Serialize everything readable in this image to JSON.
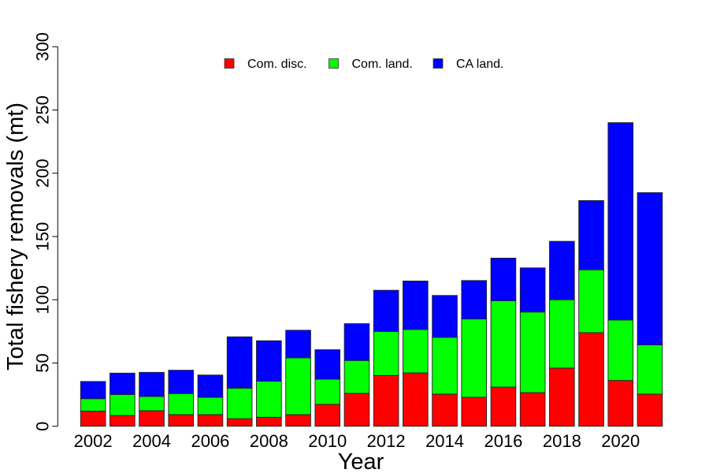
{
  "chart_data": {
    "type": "bar",
    "stacked": true,
    "title": "",
    "xlabel": "Year",
    "ylabel": "Total fishery removals (mt)",
    "ylim": [
      0,
      300
    ],
    "yticks": [
      0,
      50,
      100,
      150,
      200,
      250,
      300
    ],
    "grid": false,
    "legend_position": "top-center",
    "categories": [
      "2002",
      "2003",
      "2004",
      "2005",
      "2006",
      "2007",
      "2008",
      "2009",
      "2010",
      "2011",
      "2012",
      "2013",
      "2014",
      "2015",
      "2016",
      "2017",
      "2018",
      "2019",
      "2020",
      "2021"
    ],
    "xtick_labels": [
      "2002",
      "2004",
      "2006",
      "2008",
      "2010",
      "2012",
      "2014",
      "2016",
      "2018",
      "2020"
    ],
    "series": [
      {
        "name": "Com. disc.",
        "color": "#ff0000",
        "values": [
          12.0,
          8.5,
          12.3,
          9.2,
          9.2,
          6.0,
          7.1,
          9.2,
          17.3,
          26.0,
          40.1,
          42.2,
          25.4,
          22.9,
          31.0,
          26.6,
          46.0,
          74.0,
          36.2,
          25.4
        ]
      },
      {
        "name": "Com. land.",
        "color": "#00ff00",
        "values": [
          9.8,
          16.6,
          11.2,
          16.6,
          13.7,
          24.1,
          28.5,
          44.9,
          19.9,
          26.0,
          34.8,
          34.3,
          44.9,
          61.9,
          68.2,
          63.7,
          54.0,
          49.7,
          47.8,
          38.9
        ]
      },
      {
        "name": "CA land.",
        "color": "#0000ff",
        "values": [
          13.6,
          16.9,
          19.1,
          18.5,
          17.6,
          40.6,
          32.0,
          21.8,
          23.3,
          29.1,
          32.6,
          38.3,
          33.1,
          30.4,
          33.7,
          34.9,
          46.2,
          54.7,
          156.0,
          120.4
        ]
      }
    ]
  }
}
